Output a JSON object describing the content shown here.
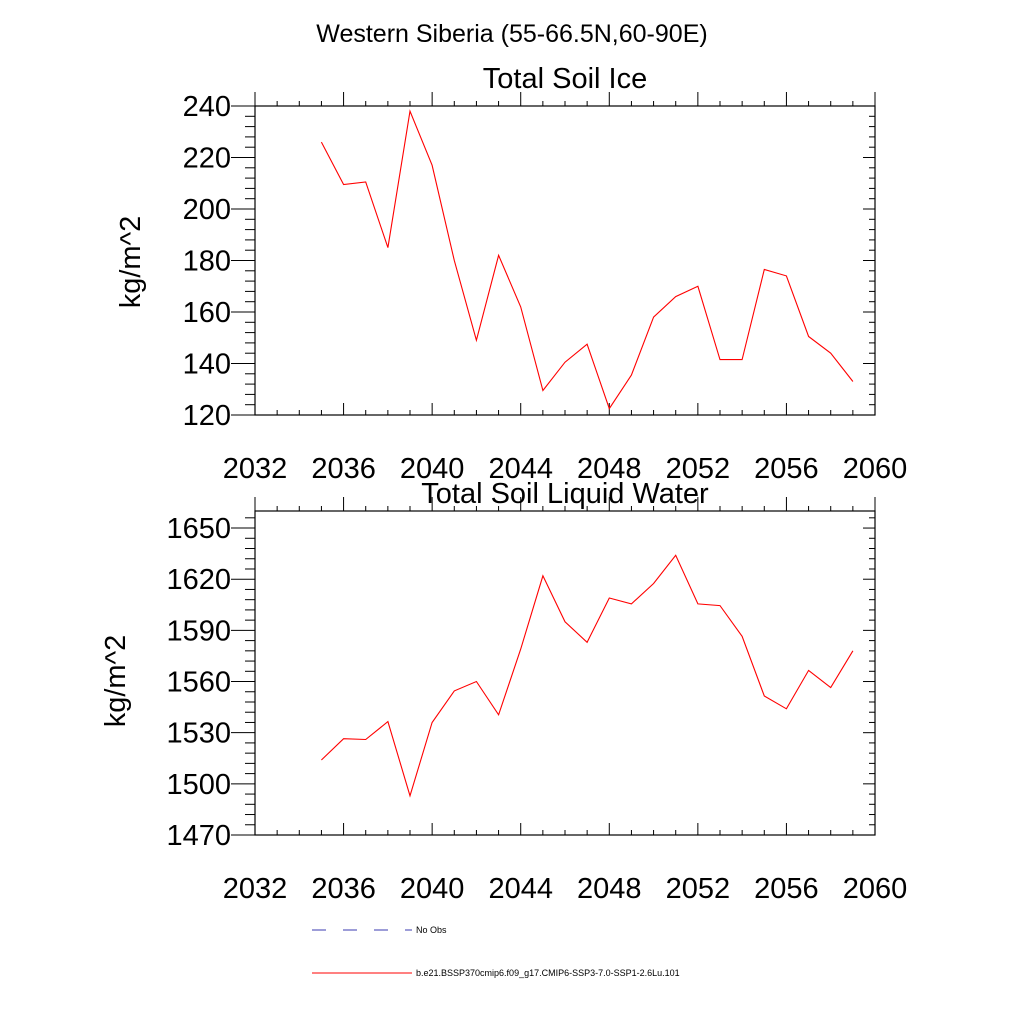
{
  "page_title": "Western Siberia (55-66.5N,60-90E)",
  "legend": [
    {
      "label": "No Obs",
      "color": "#3b3bb0",
      "style": "dashed"
    },
    {
      "label": "b.e21.BSSP370cmip6.f09_g17.CMIP6-SSP3-7.0-SSP1-2.6Lu.101",
      "color": "#ff0000",
      "style": "solid"
    }
  ],
  "chart_data": [
    {
      "type": "line",
      "title": "Total Soil Ice",
      "xlabel": "",
      "ylabel": "kg/m^2",
      "xlim": [
        2032,
        2060
      ],
      "ylim": [
        120,
        240
      ],
      "xticks": [
        2032,
        2036,
        2040,
        2044,
        2048,
        2052,
        2056,
        2060
      ],
      "yticks": [
        120,
        140,
        160,
        180,
        200,
        220,
        240
      ],
      "series": [
        {
          "color": "#ff0000",
          "x": [
            2035,
            2036,
            2037,
            2038,
            2039,
            2040,
            2041,
            2042,
            2043,
            2044,
            2045,
            2046,
            2047,
            2048,
            2049,
            2050,
            2051,
            2052,
            2053,
            2054,
            2055,
            2056,
            2057,
            2058,
            2059
          ],
          "y": [
            226,
            209.5,
            210.5,
            185,
            238,
            217,
            180,
            149,
            182,
            162,
            129.5,
            140.5,
            147.5,
            122.5,
            135.5,
            158,
            166,
            170,
            141.5,
            141.5,
            176.5,
            174,
            150.5,
            144,
            133
          ]
        }
      ]
    },
    {
      "type": "line",
      "title": "Total Soil Liquid Water",
      "xlabel": "",
      "ylabel": "kg/m^2",
      "xlim": [
        2032,
        2060
      ],
      "ylim": [
        1470,
        1660
      ],
      "xticks": [
        2032,
        2036,
        2040,
        2044,
        2048,
        2052,
        2056,
        2060
      ],
      "yticks": [
        1470,
        1500,
        1530,
        1560,
        1590,
        1620,
        1650
      ],
      "series": [
        {
          "color": "#ff0000",
          "x": [
            2035,
            2036,
            2037,
            2038,
            2039,
            2040,
            2041,
            2042,
            2043,
            2044,
            2045,
            2046,
            2047,
            2048,
            2049,
            2050,
            2051,
            2052,
            2053,
            2054,
            2055,
            2056,
            2057,
            2058,
            2059
          ],
          "y": [
            1514,
            1526.5,
            1526,
            1536.5,
            1493,
            1536,
            1554.5,
            1560,
            1540.5,
            1579,
            1622,
            1595,
            1583,
            1609,
            1605.5,
            1617.5,
            1634,
            1605.5,
            1604.5,
            1586.5,
            1551.5,
            1544,
            1566.5,
            1556.5,
            1578
          ]
        }
      ]
    }
  ]
}
